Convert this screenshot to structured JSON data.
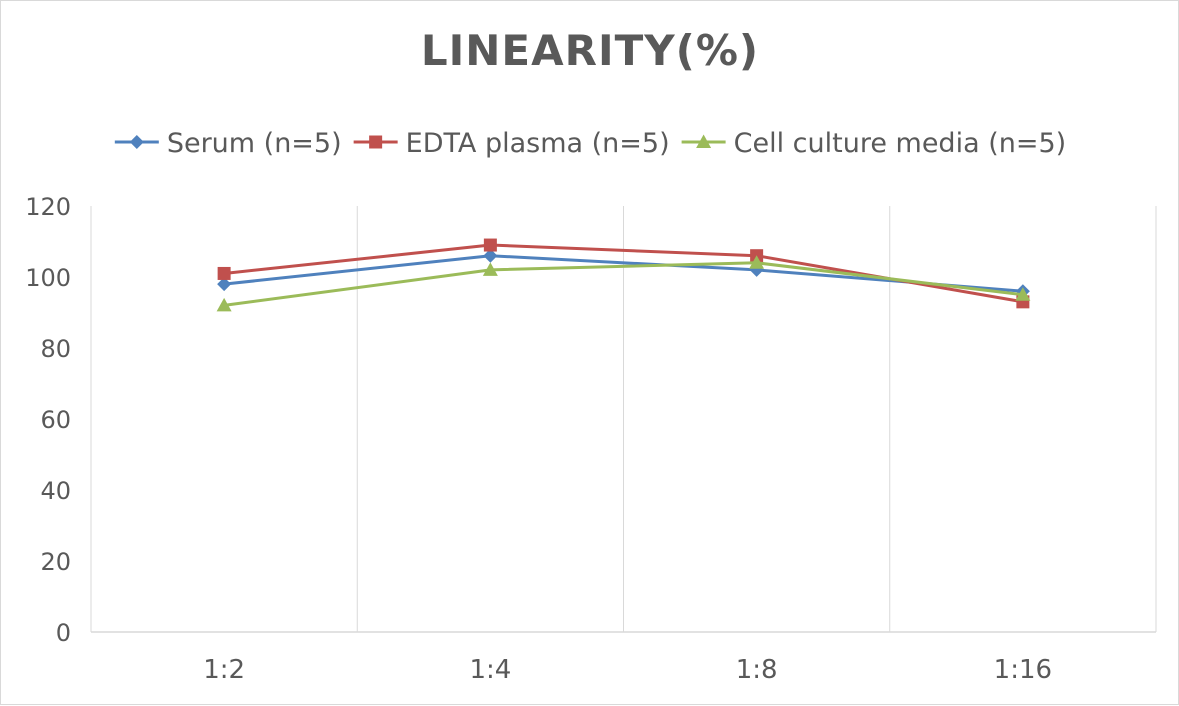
{
  "chart_data": {
    "type": "line",
    "title": "LINEARITY(%)",
    "xlabel": "",
    "ylabel": "",
    "categories": [
      "1:2",
      "1:4",
      "1:8",
      "1:16"
    ],
    "ylim": [
      0,
      120
    ],
    "yticks": [
      0,
      20,
      40,
      60,
      80,
      100,
      120
    ],
    "grid": "vertical",
    "legend_position": "top",
    "series": [
      {
        "name": "Serum (n=5)",
        "values": [
          98,
          106,
          102,
          96
        ],
        "color": "#4f81bd",
        "marker": "diamond"
      },
      {
        "name": "EDTA plasma (n=5)",
        "values": [
          101,
          109,
          106,
          93
        ],
        "color": "#c0504d",
        "marker": "square"
      },
      {
        "name": "Cell culture media (n=5)",
        "values": [
          92,
          102,
          104,
          95
        ],
        "color": "#9bbb59",
        "marker": "triangle"
      }
    ]
  }
}
